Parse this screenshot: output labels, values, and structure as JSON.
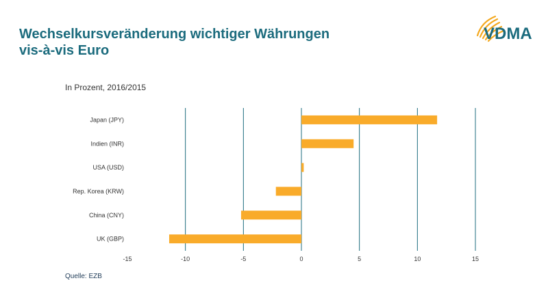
{
  "title_line1": "Wechselkursveränderung wichtiger Währungen",
  "title_line2": "vis-à-vis Euro",
  "logo_text": "VDMA",
  "subtitle": "In Prozent, 2016/2015",
  "source": "Quelle: EZB",
  "colors": {
    "title": "#1b6b7d",
    "bar": "#f9ab2a",
    "grid": "#1b6b7d",
    "logo_arcs": "#f4a81e"
  },
  "chart_data": {
    "type": "bar",
    "orientation": "horizontal",
    "categories": [
      "Japan (JPY)",
      "Indien (INR)",
      "USA (USD)",
      "Rep. Korea (KRW)",
      "China (CNY)",
      "UK (GBP)"
    ],
    "values": [
      11.7,
      4.5,
      0.2,
      -2.2,
      -5.2,
      -11.4
    ],
    "xlim": [
      -15,
      15
    ],
    "xticks": [
      "-15",
      "-10",
      "-5",
      "0",
      "5",
      "10",
      "15"
    ],
    "xtick_values": [
      -15,
      -10,
      -5,
      0,
      5,
      10,
      15
    ],
    "grid": "vertical"
  }
}
